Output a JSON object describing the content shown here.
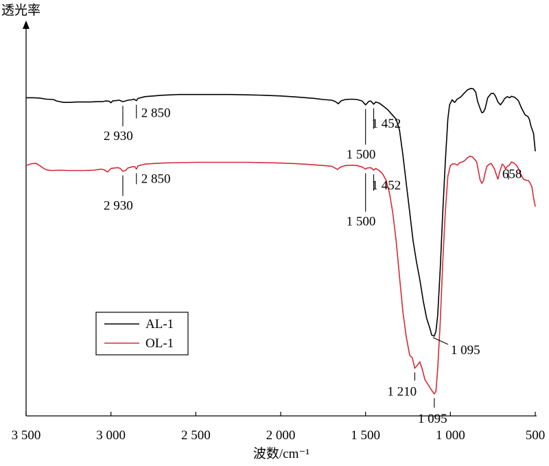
{
  "chart_data": {
    "type": "line",
    "title": "",
    "xlabel": "波数/cm⁻¹",
    "ylabel": "透光率",
    "xlim": [
      3500,
      500
    ],
    "x_reversed": true,
    "y_ticks": false,
    "grid": false,
    "legend_placement": "lower-left",
    "x_ticks": [
      {
        "value": 3500,
        "label": "3 500"
      },
      {
        "value": 3000,
        "label": "3 000"
      },
      {
        "value": 2500,
        "label": "2 500"
      },
      {
        "value": 2000,
        "label": "2 000"
      },
      {
        "value": 1500,
        "label": "1 500"
      },
      {
        "value": 1000,
        "label": "1 000"
      },
      {
        "value": 500,
        "label": "500"
      }
    ],
    "series": [
      {
        "name": "AL-1",
        "color": "#000000",
        "points": [
          [
            3500,
            0.88
          ],
          [
            3460,
            0.88
          ],
          [
            3420,
            0.879
          ],
          [
            3380,
            0.876
          ],
          [
            3340,
            0.875
          ],
          [
            3320,
            0.871
          ],
          [
            3280,
            0.867
          ],
          [
            3240,
            0.867
          ],
          [
            3200,
            0.868
          ],
          [
            3160,
            0.868
          ],
          [
            3120,
            0.868
          ],
          [
            3080,
            0.869
          ],
          [
            3050,
            0.869
          ],
          [
            3030,
            0.871
          ],
          [
            3010,
            0.87
          ],
          [
            3000,
            0.866
          ],
          [
            2990,
            0.871
          ],
          [
            2970,
            0.872
          ],
          [
            2950,
            0.873
          ],
          [
            2930,
            0.869
          ],
          [
            2915,
            0.871
          ],
          [
            2900,
            0.873
          ],
          [
            2880,
            0.874
          ],
          [
            2865,
            0.876
          ],
          [
            2850,
            0.872
          ],
          [
            2840,
            0.878
          ],
          [
            2800,
            0.883
          ],
          [
            2700,
            0.887
          ],
          [
            2600,
            0.889
          ],
          [
            2500,
            0.889
          ],
          [
            2400,
            0.889
          ],
          [
            2300,
            0.889
          ],
          [
            2200,
            0.888
          ],
          [
            2100,
            0.887
          ],
          [
            2000,
            0.885
          ],
          [
            1900,
            0.882
          ],
          [
            1800,
            0.878
          ],
          [
            1750,
            0.875
          ],
          [
            1700,
            0.873
          ],
          [
            1680,
            0.87
          ],
          [
            1660,
            0.863
          ],
          [
            1645,
            0.871
          ],
          [
            1620,
            0.875
          ],
          [
            1580,
            0.876
          ],
          [
            1550,
            0.875
          ],
          [
            1520,
            0.871
          ],
          [
            1500,
            0.86
          ],
          [
            1480,
            0.87
          ],
          [
            1470,
            0.871
          ],
          [
            1460,
            0.866
          ],
          [
            1452,
            0.862
          ],
          [
            1440,
            0.868
          ],
          [
            1420,
            0.865
          ],
          [
            1400,
            0.858
          ],
          [
            1370,
            0.847
          ],
          [
            1350,
            0.836
          ],
          [
            1320,
            0.82
          ],
          [
            1300,
            0.79
          ],
          [
            1280,
            0.72
          ],
          [
            1260,
            0.64
          ],
          [
            1240,
            0.56
          ],
          [
            1220,
            0.48
          ],
          [
            1200,
            0.42
          ],
          [
            1180,
            0.37
          ],
          [
            1160,
            0.31
          ],
          [
            1140,
            0.262
          ],
          [
            1120,
            0.232
          ],
          [
            1110,
            0.215
          ],
          [
            1095,
            0.212
          ],
          [
            1085,
            0.226
          ],
          [
            1075,
            0.27
          ],
          [
            1060,
            0.4
          ],
          [
            1045,
            0.56
          ],
          [
            1030,
            0.7
          ],
          [
            1015,
            0.82
          ],
          [
            1005,
            0.86
          ],
          [
            990,
            0.874
          ],
          [
            975,
            0.867
          ],
          [
            960,
            0.876
          ],
          [
            940,
            0.882
          ],
          [
            920,
            0.892
          ],
          [
            900,
            0.902
          ],
          [
            880,
            0.906
          ],
          [
            865,
            0.905
          ],
          [
            850,
            0.895
          ],
          [
            840,
            0.87
          ],
          [
            825,
            0.85
          ],
          [
            815,
            0.838
          ],
          [
            805,
            0.84
          ],
          [
            795,
            0.85
          ],
          [
            780,
            0.88
          ],
          [
            760,
            0.892
          ],
          [
            745,
            0.892
          ],
          [
            735,
            0.885
          ],
          [
            720,
            0.868
          ],
          [
            705,
            0.86
          ],
          [
            690,
            0.87
          ],
          [
            680,
            0.878
          ],
          [
            665,
            0.883
          ],
          [
            650,
            0.88
          ],
          [
            640,
            0.884
          ],
          [
            620,
            0.881
          ],
          [
            600,
            0.872
          ],
          [
            580,
            0.85
          ],
          [
            560,
            0.832
          ],
          [
            545,
            0.828
          ],
          [
            535,
            0.82
          ],
          [
            525,
            0.8
          ],
          [
            510,
            0.78
          ],
          [
            500,
            0.73
          ]
        ]
      },
      {
        "name": "OL-1",
        "color": "#d42a36",
        "points": [
          [
            3500,
            0.69
          ],
          [
            3470,
            0.695
          ],
          [
            3440,
            0.696
          ],
          [
            3420,
            0.69
          ],
          [
            3400,
            0.683
          ],
          [
            3380,
            0.678
          ],
          [
            3350,
            0.676
          ],
          [
            3300,
            0.677
          ],
          [
            3250,
            0.676
          ],
          [
            3200,
            0.676
          ],
          [
            3150,
            0.676
          ],
          [
            3100,
            0.677
          ],
          [
            3060,
            0.68
          ],
          [
            3040,
            0.678
          ],
          [
            3020,
            0.672
          ],
          [
            3010,
            0.677
          ],
          [
            3000,
            0.682
          ],
          [
            2980,
            0.683
          ],
          [
            2960,
            0.684
          ],
          [
            2945,
            0.682
          ],
          [
            2930,
            0.674
          ],
          [
            2915,
            0.676
          ],
          [
            2900,
            0.683
          ],
          [
            2880,
            0.686
          ],
          [
            2860,
            0.687
          ],
          [
            2850,
            0.68
          ],
          [
            2840,
            0.689
          ],
          [
            2800,
            0.694
          ],
          [
            2700,
            0.697
          ],
          [
            2600,
            0.698
          ],
          [
            2500,
            0.699
          ],
          [
            2400,
            0.699
          ],
          [
            2300,
            0.699
          ],
          [
            2200,
            0.699
          ],
          [
            2100,
            0.698
          ],
          [
            2000,
            0.697
          ],
          [
            1900,
            0.695
          ],
          [
            1800,
            0.692
          ],
          [
            1750,
            0.69
          ],
          [
            1700,
            0.688
          ],
          [
            1680,
            0.683
          ],
          [
            1665,
            0.679
          ],
          [
            1650,
            0.685
          ],
          [
            1620,
            0.69
          ],
          [
            1580,
            0.691
          ],
          [
            1550,
            0.69
          ],
          [
            1520,
            0.686
          ],
          [
            1500,
            0.68
          ],
          [
            1490,
            0.683
          ],
          [
            1470,
            0.684
          ],
          [
            1460,
            0.681
          ],
          [
            1452,
            0.677
          ],
          [
            1440,
            0.682
          ],
          [
            1420,
            0.676
          ],
          [
            1400,
            0.667
          ],
          [
            1380,
            0.65
          ],
          [
            1360,
            0.615
          ],
          [
            1340,
            0.56
          ],
          [
            1320,
            0.48
          ],
          [
            1300,
            0.38
          ],
          [
            1280,
            0.28
          ],
          [
            1260,
            0.21
          ],
          [
            1240,
            0.158
          ],
          [
            1225,
            0.152
          ],
          [
            1210,
            0.122
          ],
          [
            1195,
            0.13
          ],
          [
            1180,
            0.14
          ],
          [
            1165,
            0.118
          ],
          [
            1150,
            0.09
          ],
          [
            1130,
            0.075
          ],
          [
            1110,
            0.06
          ],
          [
            1095,
            0.05
          ],
          [
            1085,
            0.058
          ],
          [
            1075,
            0.12
          ],
          [
            1060,
            0.25
          ],
          [
            1045,
            0.42
          ],
          [
            1030,
            0.56
          ],
          [
            1015,
            0.66
          ],
          [
            1000,
            0.69
          ],
          [
            990,
            0.694
          ],
          [
            975,
            0.695
          ],
          [
            960,
            0.691
          ],
          [
            945,
            0.698
          ],
          [
            930,
            0.7
          ],
          [
            915,
            0.704
          ],
          [
            900,
            0.712
          ],
          [
            885,
            0.716
          ],
          [
            870,
            0.714
          ],
          [
            855,
            0.706
          ],
          [
            845,
            0.7
          ],
          [
            835,
            0.675
          ],
          [
            825,
            0.65
          ],
          [
            815,
            0.64
          ],
          [
            805,
            0.648
          ],
          [
            795,
            0.67
          ],
          [
            785,
            0.688
          ],
          [
            770,
            0.694
          ],
          [
            760,
            0.696
          ],
          [
            750,
            0.688
          ],
          [
            740,
            0.68
          ],
          [
            730,
            0.665
          ],
          [
            720,
            0.652
          ],
          [
            710,
            0.672
          ],
          [
            695,
            0.694
          ],
          [
            685,
            0.69
          ],
          [
            675,
            0.68
          ],
          [
            665,
            0.688
          ],
          [
            655,
            0.69
          ],
          [
            640,
            0.7
          ],
          [
            625,
            0.697
          ],
          [
            610,
            0.69
          ],
          [
            600,
            0.682
          ],
          [
            585,
            0.665
          ],
          [
            570,
            0.652
          ],
          [
            550,
            0.648
          ],
          [
            540,
            0.648
          ],
          [
            530,
            0.64
          ],
          [
            520,
            0.63
          ],
          [
            510,
            0.6
          ],
          [
            500,
            0.575
          ]
        ]
      }
    ],
    "annotations": [
      {
        "series": "AL-1",
        "x": 2930,
        "label": "2 930"
      },
      {
        "series": "AL-1",
        "x": 2850,
        "label": "2 850"
      },
      {
        "series": "AL-1",
        "x": 1500,
        "label": "1 500"
      },
      {
        "series": "AL-1",
        "x": 1452,
        "label": "1 452"
      },
      {
        "series": "AL-1",
        "x": 1095,
        "label": "1 095"
      },
      {
        "series": "OL-1",
        "x": 2930,
        "label": "2 930"
      },
      {
        "series": "OL-1",
        "x": 2850,
        "label": "2 850"
      },
      {
        "series": "OL-1",
        "x": 1500,
        "label": "1 500"
      },
      {
        "series": "OL-1",
        "x": 1452,
        "label": "1 452"
      },
      {
        "series": "OL-1",
        "x": 1210,
        "label": "1 210"
      },
      {
        "series": "OL-1",
        "x": 1095,
        "label": "1 095"
      },
      {
        "series": "OL-1",
        "x": 658,
        "label": "658"
      }
    ]
  }
}
